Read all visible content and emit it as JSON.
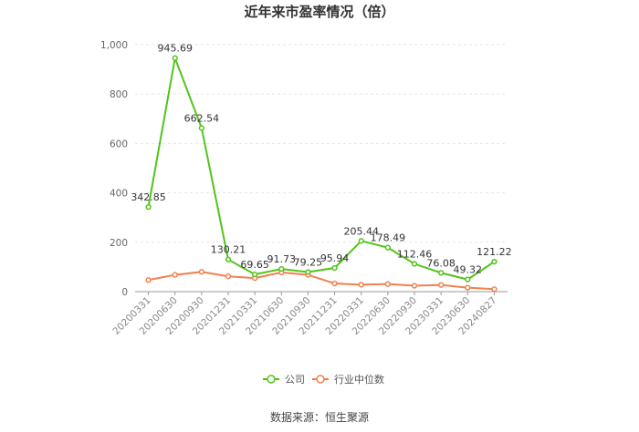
{
  "chart_data": {
    "type": "line",
    "title": "近年来市盈率情况（倍）",
    "categories": [
      "20200331",
      "20200630",
      "20200930",
      "20201231",
      "20210331",
      "20210630",
      "20210930",
      "20211231",
      "20220331",
      "20220630",
      "20220930",
      "20230331",
      "20230630",
      "20240827"
    ],
    "series": [
      {
        "name": "公司",
        "color": "#52c41a",
        "values": [
          342.85,
          945.69,
          662.54,
          130.21,
          69.65,
          91.73,
          79.25,
          95.94,
          205.44,
          178.49,
          112.46,
          76.08,
          49.32,
          121.22
        ],
        "labels": [
          "342.85",
          "945.69",
          "662.54",
          "130.21",
          "69.65",
          "91.73",
          "79.25",
          "95.94",
          "205.44",
          "178.49",
          "112.46",
          "76.08",
          "49.32",
          "121.22"
        ]
      },
      {
        "name": "行业中位数",
        "color": "#f08050",
        "values": [
          47,
          68,
          80,
          62,
          55,
          78,
          68,
          33,
          28,
          31,
          24,
          27,
          16,
          10
        ]
      }
    ],
    "yticks": [
      "0",
      "200",
      "400",
      "600",
      "800",
      "1,000"
    ],
    "ylim": [
      0,
      1000
    ],
    "grid": true,
    "legend": "bottom-center",
    "xlabel": "",
    "ylabel": ""
  },
  "footer": {
    "source": "数据来源：恒生聚源"
  }
}
